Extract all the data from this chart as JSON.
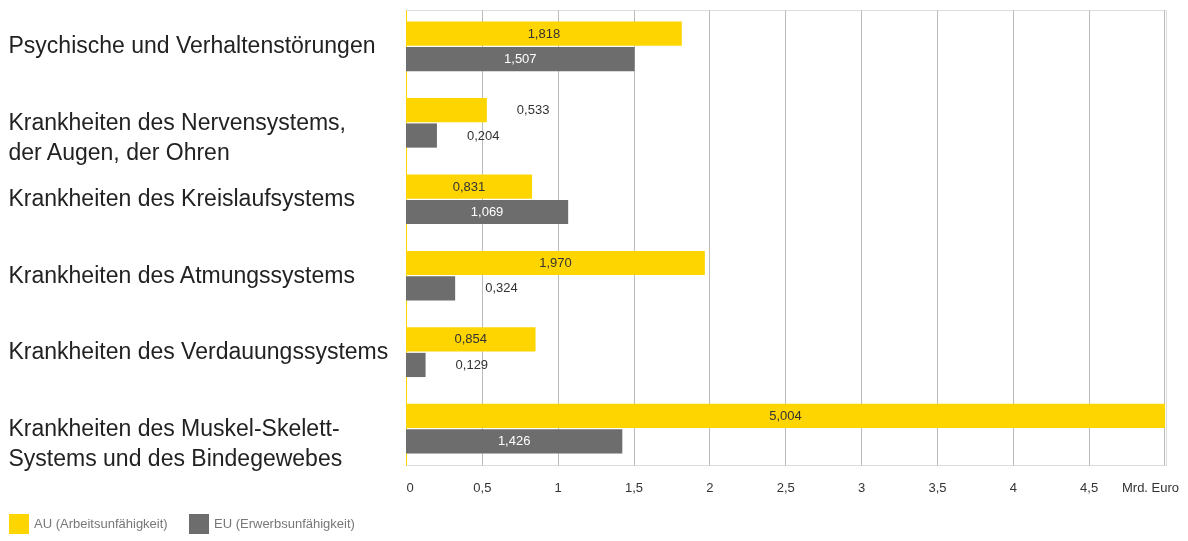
{
  "chart_data": {
    "type": "bar",
    "orientation": "horizontal",
    "categories": [
      "Psychische und Verhaltenstörungen",
      "Krankheiten des Nervensystems,\nder Augen, der Ohren",
      "Krankheiten des Kreislaufsystems",
      "Krankheiten des Atmungssystems",
      "Krankheiten des Verdauungssystems",
      "Krankheiten des Muskel-Skelett-\nSystems und des Bindegewebes"
    ],
    "series": [
      {
        "name": "AU (Arbeitsunfähigkeit)",
        "color": "#ffd500",
        "values": [
          1.818,
          0.533,
          0.831,
          1.97,
          0.854,
          5.004
        ],
        "value_labels": [
          "1,818",
          "0,533",
          "0,831",
          "1,970",
          "0,854",
          "5,004"
        ]
      },
      {
        "name": "EU (Erwerbsunfähigkeit)",
        "color": "#6d6d6d",
        "values": [
          1.507,
          0.204,
          1.069,
          0.324,
          0.129,
          1.426
        ],
        "value_labels": [
          "1,507",
          "0,204",
          "1,069",
          "0,324",
          "0,129",
          "1,426"
        ]
      }
    ],
    "xlabel": "Mrd. Euro",
    "xlim": [
      0,
      5.01
    ],
    "xticks": [
      0,
      {
        "value": 0.5,
        "label": "0,5"
      },
      1,
      {
        "value": 1.5,
        "label": "1,5"
      },
      2,
      {
        "value": 2.5,
        "label": "2,5"
      },
      3,
      {
        "value": 3.5,
        "label": "3,5"
      },
      4,
      {
        "value": 4.5,
        "label": "4,5"
      },
      {
        "value": 5,
        "label": null
      }
    ],
    "grid": "x",
    "legend": "bottom left"
  }
}
